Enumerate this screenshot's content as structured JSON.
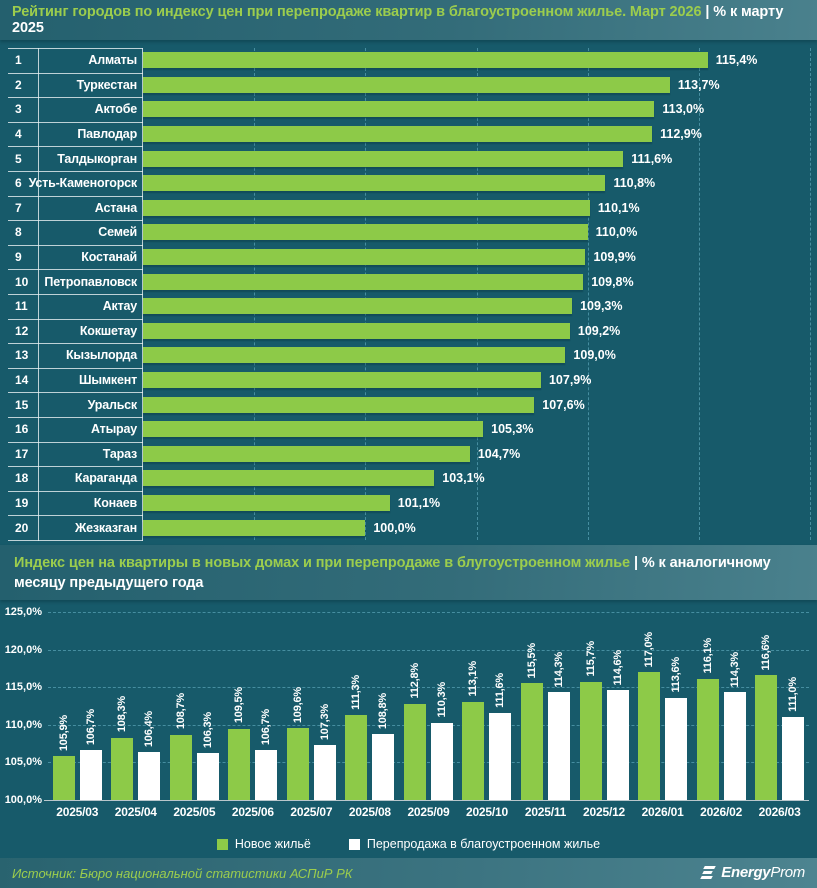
{
  "header": {
    "title_green": "Рейтинг городов по индексу цен при перепродаже квартир в благоустроенном жилье. Март 2026",
    "title_white": "| % к марту 2025"
  },
  "section2": {
    "title_green": "Индекс цен на квартиры в новых домах и при перепродаже в блугоустроенном жилье",
    "title_white": "| % к аналогичному месяцу предыдущего года"
  },
  "footer": {
    "source": "Источник: Бюро национальной статистики АСПиР РК",
    "logo_bold": "Energy",
    "logo_light": "Prom"
  },
  "colors": {
    "background": "#175a6a",
    "accent_green": "#8dca48",
    "title_green": "#9ccd4d",
    "white": "#ffffff"
  },
  "chart_data": [
    {
      "type": "bar",
      "orientation": "horizontal",
      "title": "Рейтинг городов по индексу цен при перепродаже квартир в благоустроенном жилье. Март 2026",
      "subtitle": "% к марту 2025",
      "ranks": [
        1,
        2,
        3,
        4,
        5,
        6,
        7,
        8,
        9,
        10,
        11,
        12,
        13,
        14,
        15,
        16,
        17,
        18,
        19,
        20
      ],
      "categories": [
        "Алматы",
        "Туркестан",
        "Актобе",
        "Павлодар",
        "Талдыкорган",
        "Усть-Каменогорск",
        "Астана",
        "Семей",
        "Костанай",
        "Петропавловск",
        "Актау",
        "Кокшетау",
        "Кызылорда",
        "Шымкент",
        "Уральск",
        "Атырау",
        "Тараз",
        "Караганда",
        "Конаев",
        "Жезказган"
      ],
      "values": [
        115.4,
        113.7,
        113.0,
        112.9,
        111.6,
        110.8,
        110.1,
        110.0,
        109.9,
        109.8,
        109.3,
        109.2,
        109.0,
        107.9,
        107.6,
        105.3,
        104.7,
        103.1,
        101.1,
        100.0
      ],
      "xlim": [
        90,
        120
      ],
      "gridlines": [
        95,
        100,
        105,
        110,
        115,
        120
      ],
      "bar_color": "#8dca48",
      "grid": true
    },
    {
      "type": "bar",
      "orientation": "vertical",
      "title": "Индекс цен на квартиры в новых домах и при перепродаже в блугоустроенном жилье",
      "subtitle": "% к аналогичному месяцу предыдущего года",
      "categories": [
        "2025/03",
        "2025/04",
        "2025/05",
        "2025/06",
        "2025/07",
        "2025/08",
        "2025/09",
        "2025/10",
        "2025/11",
        "2025/12",
        "2026/01",
        "2026/02",
        "2026/03"
      ],
      "series": [
        {
          "name": "Новое жильё",
          "color": "#8dca48",
          "values": [
            105.9,
            108.3,
            108.7,
            109.5,
            109.6,
            111.3,
            112.8,
            113.1,
            115.5,
            115.7,
            117.0,
            116.1,
            116.6
          ]
        },
        {
          "name": "Перепродажа в благоустроенном жилье",
          "color": "#ffffff",
          "values": [
            106.7,
            106.4,
            106.3,
            106.7,
            107.3,
            108.8,
            110.3,
            111.6,
            114.3,
            114.6,
            113.6,
            114.3,
            111.0
          ]
        }
      ],
      "ylim": [
        100,
        125
      ],
      "yticks": [
        100,
        105,
        110,
        115,
        120,
        125
      ],
      "ytick_labels": [
        "100,0%",
        "105,0%",
        "110,0%",
        "115,0%",
        "120,0%",
        "125,0%"
      ],
      "grid": true,
      "legend_position": "bottom"
    }
  ]
}
